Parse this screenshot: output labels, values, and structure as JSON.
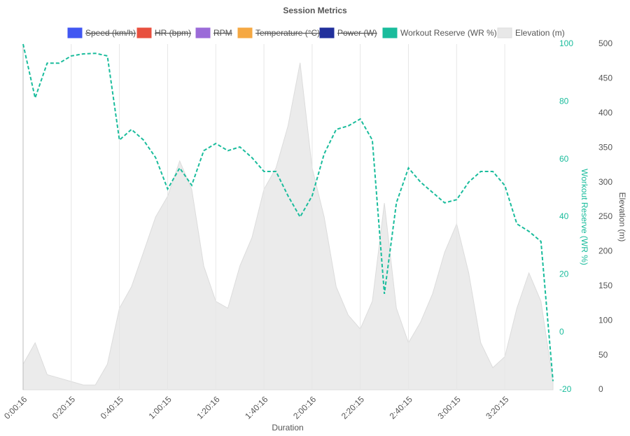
{
  "chart_data": {
    "type": "line",
    "title": "Session Metrics",
    "legend": [
      {
        "name": "Speed (km/h)",
        "color": "#4157f2",
        "hidden": true
      },
      {
        "name": "HR (bpm)",
        "color": "#e8503f",
        "hidden": true
      },
      {
        "name": "RPM",
        "color": "#9b6bd8",
        "hidden": true
      },
      {
        "name": "Temperature (°C)",
        "color": "#f5a843",
        "hidden": true
      },
      {
        "name": "Power (W)",
        "color": "#21309c",
        "hidden": true
      },
      {
        "name": "Workout Reserve (WR %)",
        "color": "#1abc9c",
        "hidden": false
      },
      {
        "name": "Elevation (m)",
        "color": "#e8e8e8",
        "hidden": false
      }
    ],
    "x": [
      16,
      316,
      616,
      916,
      1216,
      1516,
      1816,
      2116,
      2416,
      2716,
      3016,
      3316,
      3616,
      3916,
      4216,
      4516,
      4816,
      5116,
      5416,
      5716,
      6016,
      6316,
      6616,
      6916,
      7216,
      7516,
      7816,
      8116,
      8416,
      8716,
      9016,
      9316,
      9616,
      9916,
      10216,
      10516,
      10816,
      11116,
      11416,
      11716,
      12016,
      12316,
      12616,
      12916,
      13216
    ],
    "series": [
      {
        "name": "Workout Reserve (WR %)",
        "color": "#1abc9c",
        "axis": "y",
        "values": [
          100,
          81.3,
          93.4,
          93.4,
          95.9,
          96.6,
          96.8,
          95.9,
          66.7,
          70.4,
          66.7,
          60.6,
          49.7,
          57,
          51,
          63,
          65.5,
          63,
          64.3,
          60.6,
          55.8,
          55.8,
          47.3,
          40,
          47.3,
          61.9,
          70.4,
          71.6,
          74,
          66.7,
          13.3,
          44.9,
          57,
          52.1,
          48.5,
          44.9,
          46,
          52.1,
          55.8,
          55.8,
          50.9,
          37.6,
          35,
          31.5,
          -17
        ]
      },
      {
        "name": "Elevation (m)",
        "color": "#ebebeb",
        "axis": "y2",
        "values": [
          37,
          68,
          22,
          17,
          12,
          7,
          7,
          37,
          118,
          149,
          199,
          250,
          280,
          331,
          290,
          179,
          128,
          118,
          179,
          220,
          290,
          321,
          382,
          473,
          321,
          250,
          149,
          108,
          88,
          128,
          270,
          118,
          68,
          98,
          139,
          199,
          240,
          169,
          68,
          32,
          48,
          118,
          169,
          128,
          12
        ]
      }
    ],
    "xlabel": "Duration",
    "ylabel": "Workout Reserve (WR %)",
    "y2label": "Elevation (m)",
    "xlim": [
      16,
      13216
    ],
    "xticks": [
      {
        "value": 16,
        "label": "0:00:16"
      },
      {
        "value": 1215,
        "label": "0:20:15"
      },
      {
        "value": 2415,
        "label": "0:40:15"
      },
      {
        "value": 3615,
        "label": "1:00:15"
      },
      {
        "value": 4816,
        "label": "1:20:16"
      },
      {
        "value": 6016,
        "label": "1:40:16"
      },
      {
        "value": 7216,
        "label": "2:00:16"
      },
      {
        "value": 8415,
        "label": "2:20:15"
      },
      {
        "value": 9615,
        "label": "2:40:15"
      },
      {
        "value": 10815,
        "label": "3:00:15"
      },
      {
        "value": 12015,
        "label": "3:20:15"
      }
    ],
    "ylim": [
      -20,
      100
    ],
    "yticks": [
      -20,
      0,
      20,
      40,
      60,
      80,
      100
    ],
    "y2lim": [
      0,
      500
    ],
    "y2ticks": [
      0,
      50,
      100,
      150,
      200,
      250,
      300,
      350,
      400,
      450,
      500
    ],
    "grid": true
  }
}
